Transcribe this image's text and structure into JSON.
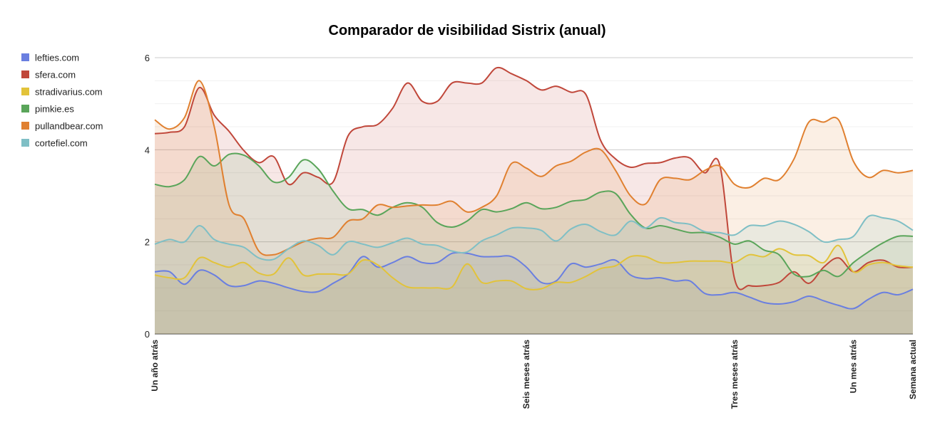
{
  "chart_data": {
    "type": "area",
    "title": "Comparador de visibilidad Sistrix (anual)",
    "xlabel": "",
    "ylabel": "",
    "ylim": [
      0,
      6
    ],
    "yticks": [
      0,
      2,
      4,
      6
    ],
    "grid": true,
    "legend_position": "left",
    "x": [
      0,
      1,
      2,
      3,
      4,
      5,
      6,
      7,
      8,
      9,
      10,
      11,
      12,
      13,
      14,
      15,
      16,
      17,
      18,
      19,
      20,
      21,
      22,
      23,
      24,
      25,
      26,
      27,
      28,
      29,
      30,
      31,
      32,
      33,
      34,
      35,
      36,
      37,
      38,
      39,
      40,
      41,
      42,
      43,
      44,
      45,
      46,
      47,
      48,
      49,
      50,
      51
    ],
    "x_tick_labels": [
      {
        "x": 0,
        "label": "Un año atrás"
      },
      {
        "x": 25,
        "label": "Seis meses atrás"
      },
      {
        "x": 39,
        "label": "Tres meses atrás"
      },
      {
        "x": 47,
        "label": "Un mes atrás"
      },
      {
        "x": 51,
        "label": "Semana actual"
      }
    ],
    "series": [
      {
        "name": "lefties.com",
        "color": "#6a7fe0",
        "values": [
          1.35,
          1.35,
          1.08,
          1.38,
          1.28,
          1.05,
          1.05,
          1.15,
          1.1,
          1.0,
          0.92,
          0.92,
          1.1,
          1.3,
          1.68,
          1.45,
          1.55,
          1.68,
          1.55,
          1.55,
          1.75,
          1.75,
          1.68,
          1.68,
          1.68,
          1.45,
          1.12,
          1.15,
          1.52,
          1.45,
          1.52,
          1.6,
          1.28,
          1.2,
          1.22,
          1.15,
          1.15,
          0.88,
          0.85,
          0.9,
          0.8,
          0.68,
          0.65,
          0.7,
          0.82,
          0.72,
          0.62,
          0.55,
          0.75,
          0.9,
          0.85,
          0.97
        ]
      },
      {
        "name": "sfera.com",
        "color": "#c0473a",
        "values": [
          4.35,
          4.38,
          4.5,
          5.35,
          4.75,
          4.4,
          3.98,
          3.72,
          3.85,
          3.25,
          3.5,
          3.4,
          3.3,
          4.3,
          4.5,
          4.55,
          4.9,
          5.45,
          5.05,
          5.05,
          5.45,
          5.45,
          5.45,
          5.78,
          5.65,
          5.5,
          5.3,
          5.38,
          5.25,
          5.2,
          4.2,
          3.8,
          3.62,
          3.7,
          3.72,
          3.82,
          3.82,
          3.5,
          3.68,
          1.2,
          1.05,
          1.05,
          1.12,
          1.35,
          1.1,
          1.45,
          1.65,
          1.35,
          1.55,
          1.6,
          1.45,
          1.45
        ]
      },
      {
        "name": "stradivarius.com",
        "color": "#e2c33a",
        "values": [
          1.28,
          1.22,
          1.22,
          1.65,
          1.55,
          1.45,
          1.55,
          1.32,
          1.3,
          1.65,
          1.28,
          1.3,
          1.3,
          1.3,
          1.6,
          1.5,
          1.22,
          1.02,
          1.0,
          1.0,
          1.02,
          1.52,
          1.12,
          1.15,
          1.15,
          0.98,
          0.98,
          1.12,
          1.12,
          1.25,
          1.42,
          1.48,
          1.68,
          1.68,
          1.55,
          1.55,
          1.58,
          1.58,
          1.58,
          1.55,
          1.72,
          1.68,
          1.85,
          1.72,
          1.7,
          1.55,
          1.92,
          1.35,
          1.5,
          1.55,
          1.48,
          1.45
        ]
      },
      {
        "name": "pimkie.es",
        "color": "#5aa55a",
        "values": [
          3.25,
          3.2,
          3.35,
          3.85,
          3.65,
          3.9,
          3.88,
          3.65,
          3.3,
          3.4,
          3.78,
          3.58,
          3.1,
          2.72,
          2.7,
          2.58,
          2.75,
          2.85,
          2.75,
          2.42,
          2.32,
          2.45,
          2.7,
          2.65,
          2.72,
          2.85,
          2.72,
          2.75,
          2.88,
          2.92,
          3.08,
          3.05,
          2.6,
          2.3,
          2.35,
          2.28,
          2.2,
          2.2,
          2.1,
          1.95,
          2.02,
          1.82,
          1.72,
          1.3,
          1.25,
          1.38,
          1.25,
          1.55,
          1.78,
          1.98,
          2.12,
          2.12
        ]
      },
      {
        "name": "pullandbear.com",
        "color": "#e08030",
        "values": [
          4.65,
          4.45,
          4.7,
          5.5,
          4.5,
          2.8,
          2.5,
          1.8,
          1.72,
          1.85,
          2.0,
          2.08,
          2.1,
          2.45,
          2.5,
          2.8,
          2.75,
          2.78,
          2.8,
          2.8,
          2.88,
          2.65,
          2.75,
          3.0,
          3.7,
          3.6,
          3.42,
          3.65,
          3.75,
          3.95,
          4.0,
          3.55,
          3.0,
          2.82,
          3.35,
          3.38,
          3.35,
          3.55,
          3.65,
          3.25,
          3.18,
          3.38,
          3.35,
          3.8,
          4.6,
          4.6,
          4.65,
          3.75,
          3.4,
          3.55,
          3.5,
          3.55
        ]
      },
      {
        "name": "cortefiel.com",
        "color": "#7fbfc5",
        "values": [
          1.95,
          2.05,
          2.0,
          2.35,
          2.05,
          1.95,
          1.88,
          1.65,
          1.62,
          1.85,
          2.02,
          1.92,
          1.72,
          2.0,
          1.95,
          1.88,
          1.98,
          2.08,
          1.95,
          1.92,
          1.8,
          1.78,
          2.02,
          2.15,
          2.3,
          2.3,
          2.25,
          2.02,
          2.28,
          2.38,
          2.22,
          2.15,
          2.45,
          2.3,
          2.52,
          2.42,
          2.38,
          2.22,
          2.2,
          2.15,
          2.35,
          2.35,
          2.45,
          2.38,
          2.22,
          2.0,
          2.05,
          2.12,
          2.55,
          2.52,
          2.45,
          2.25
        ]
      }
    ]
  }
}
